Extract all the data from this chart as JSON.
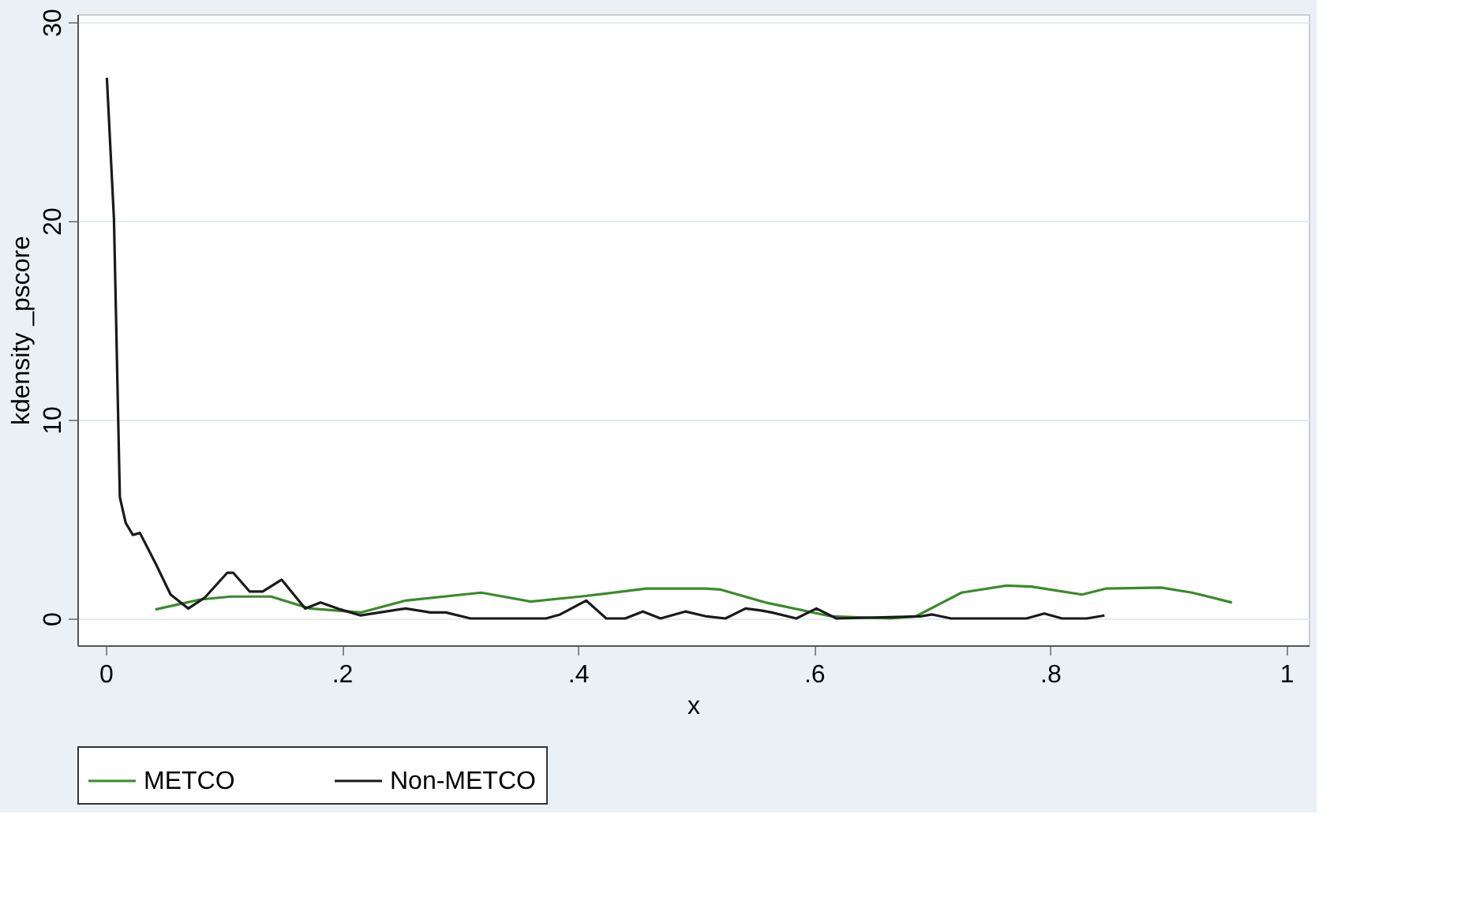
{
  "chart_data": {
    "type": "line",
    "xlabel": "x",
    "ylabel": "kdensity _pscore",
    "xlim": [
      -0.024,
      1.019
    ],
    "ylim": [
      -1.35,
      30.4
    ],
    "xticks": [
      0,
      {
        "value": 0.2,
        "label": ".2"
      },
      {
        "value": 0.4,
        "label": ".4"
      },
      {
        "value": 0.6,
        "label": ".6"
      },
      {
        "value": 0.8,
        "label": ".8"
      },
      1
    ],
    "yticks": [
      0,
      10,
      20,
      30
    ],
    "grid": "y",
    "legend": "bottom",
    "line_style": "solid",
    "marker": "none",
    "series": [
      {
        "name": "METCO",
        "color": "#3a8a2a",
        "x": [
          0.042,
          0.08,
          0.106,
          0.14,
          0.173,
          0.216,
          0.254,
          0.318,
          0.36,
          0.402,
          0.458,
          0.508,
          0.521,
          0.559,
          0.615,
          0.665,
          0.686,
          0.725,
          0.763,
          0.784,
          0.827,
          0.847,
          0.894,
          0.92,
          0.954
        ],
        "values": [
          0.45,
          0.95,
          1.1,
          1.1,
          0.5,
          0.3,
          0.9,
          1.3,
          0.85,
          1.1,
          1.5,
          1.5,
          1.45,
          0.8,
          0.1,
          0,
          0.1,
          1.3,
          1.65,
          1.6,
          1.2,
          1.5,
          1.55,
          1.3,
          0.8
        ]
      },
      {
        "name": "Non-METCO",
        "color": "#1a1a1a",
        "x": [
          0.001,
          0.007,
          0.012,
          0.017,
          0.023,
          0.029,
          0.042,
          0.055,
          0.07,
          0.084,
          0.103,
          0.108,
          0.122,
          0.133,
          0.149,
          0.169,
          0.182,
          0.199,
          0.216,
          0.254,
          0.275,
          0.288,
          0.309,
          0.373,
          0.385,
          0.407,
          0.424,
          0.44,
          0.455,
          0.47,
          0.491,
          0.509,
          0.525,
          0.542,
          0.555,
          0.564,
          0.585,
          0.602,
          0.619,
          0.69,
          0.7,
          0.716,
          0.78,
          0.795,
          0.81,
          0.831,
          0.846
        ],
        "values": [
          27.2,
          20.1,
          6.1,
          4.8,
          4.2,
          4.3,
          2.8,
          1.2,
          0.5,
          1.05,
          2.3,
          2.3,
          1.35,
          1.35,
          1.95,
          0.5,
          0.8,
          0.45,
          0.15,
          0.5,
          0.3,
          0.3,
          0,
          0,
          0.2,
          0.9,
          0,
          0,
          0.35,
          0,
          0.35,
          0.1,
          0,
          0.5,
          0.4,
          0.3,
          0,
          0.5,
          0,
          0.1,
          0.2,
          0,
          0,
          0.25,
          0,
          0,
          0.15
        ]
      }
    ]
  }
}
